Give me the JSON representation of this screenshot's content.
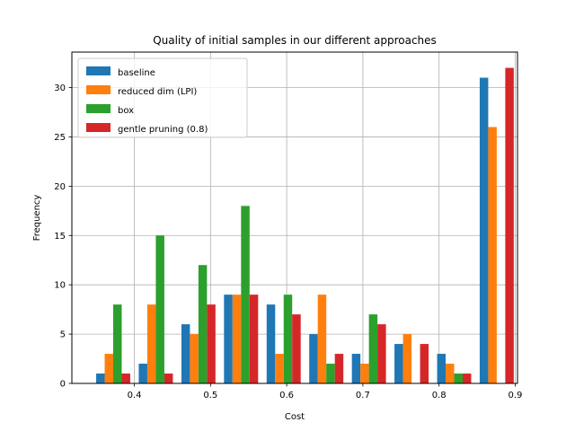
{
  "chart_data": {
    "type": "bar",
    "title": "Quality of initial samples in our different approaches",
    "xlabel": "Cost",
    "ylabel": "Frequency",
    "xlim": [
      0.318,
      0.903
    ],
    "ylim": [
      0,
      33.6
    ],
    "xticks": [
      0.4,
      0.5,
      0.6,
      0.7,
      0.8,
      0.9
    ],
    "xtick_labels": [
      "0.4",
      "0.5",
      "0.6",
      "0.7",
      "0.8",
      "0.9"
    ],
    "yticks": [
      0,
      5,
      10,
      15,
      20,
      25,
      30
    ],
    "ytick_labels": [
      "0",
      "5",
      "10",
      "15",
      "20",
      "25",
      "30"
    ],
    "grid": true,
    "legend_position": "top-left",
    "bin_edges": [
      0.3443,
      0.4002,
      0.4562,
      0.5121,
      0.5681,
      0.624,
      0.68,
      0.7359,
      0.7919,
      0.8478,
      0.9037
    ],
    "series": [
      {
        "name": "baseline",
        "color": "#1f77b4",
        "values": [
          1,
          2,
          6,
          9,
          8,
          5,
          3,
          4,
          3,
          31
        ]
      },
      {
        "name": "reduced dim (LPI)",
        "color": "#ff7f0e",
        "values": [
          3,
          8,
          5,
          9,
          3,
          9,
          2,
          5,
          2,
          26
        ]
      },
      {
        "name": "box",
        "color": "#2ca02c",
        "values": [
          8,
          15,
          12,
          18,
          9,
          2,
          7,
          0,
          1,
          0
        ]
      },
      {
        "name": "gentle pruning (0.8)",
        "color": "#d62728",
        "values": [
          1,
          1,
          8,
          9,
          7,
          3,
          6,
          4,
          1,
          32
        ]
      }
    ]
  }
}
